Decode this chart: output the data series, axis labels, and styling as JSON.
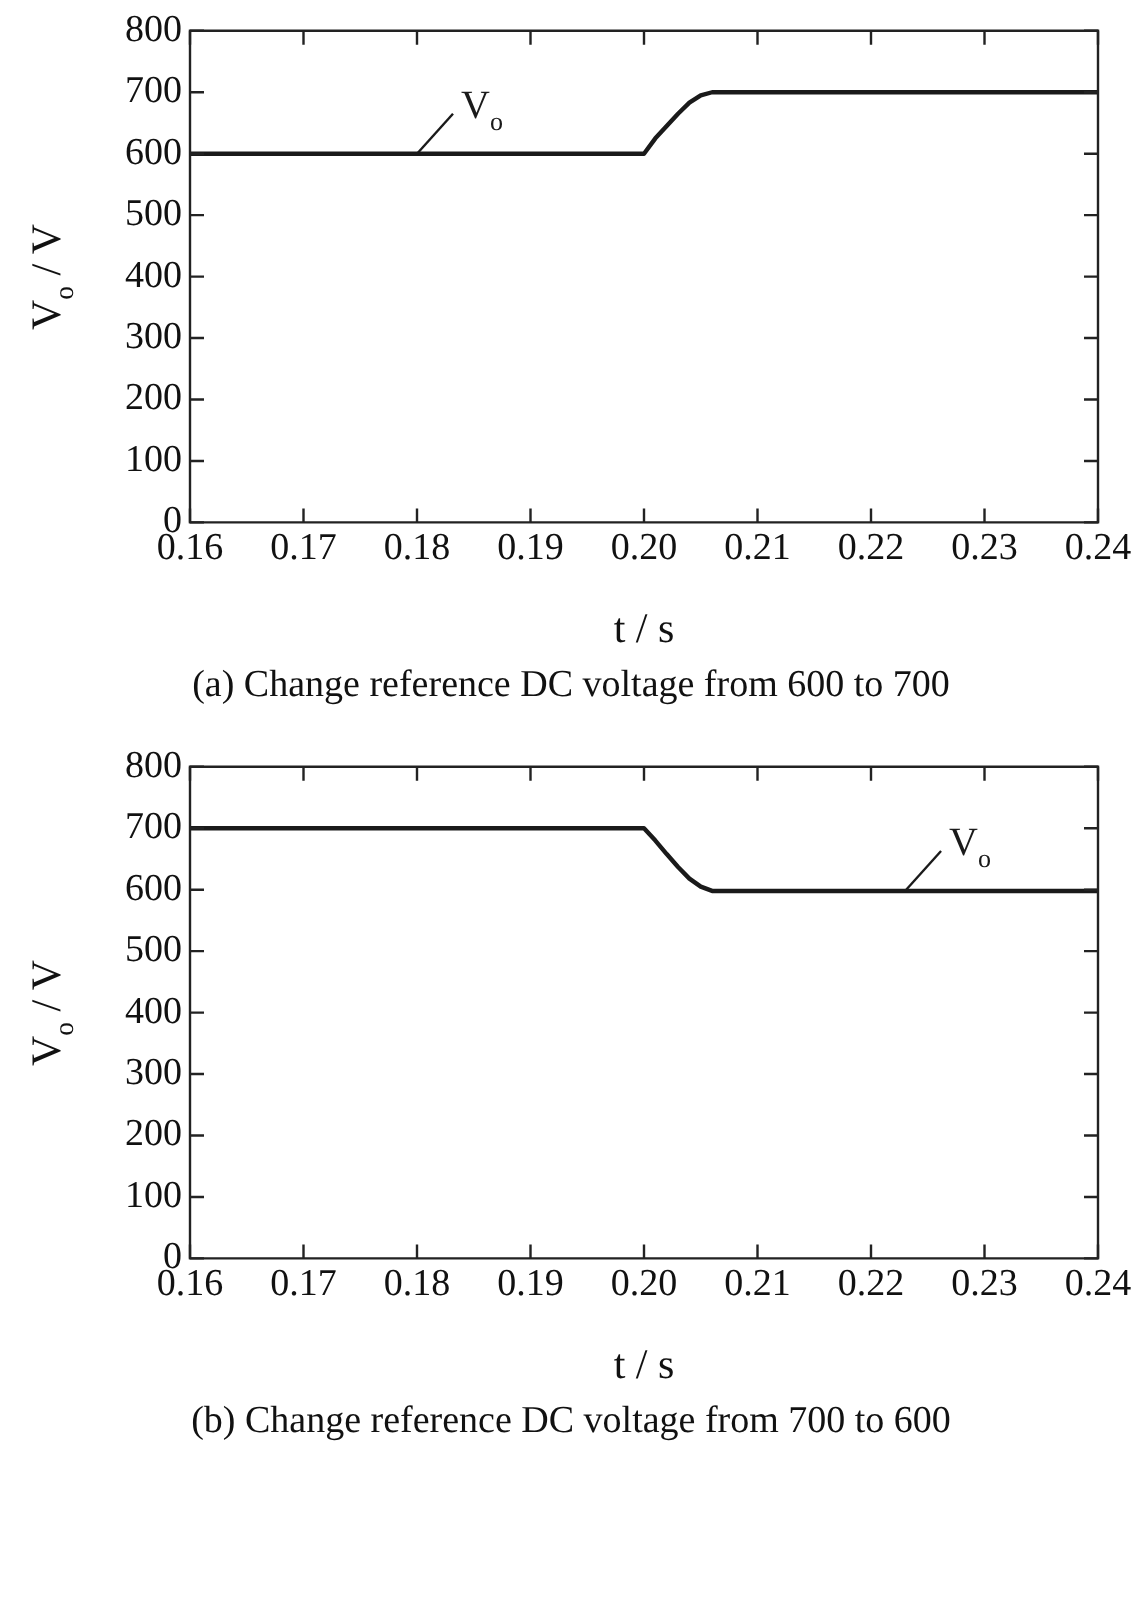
{
  "chart_data": [
    {
      "type": "line",
      "title": "(a)  Change reference DC voltage from 600 to 700",
      "xlabel": "t / s",
      "ylabel": "V$_{o}$ / V",
      "grid": false,
      "marker": "none",
      "line_style": "solid",
      "xlim": [
        0.16,
        0.24
      ],
      "xticks": [
        0.16,
        0.17,
        0.18,
        0.19,
        {
          "value": 0.2,
          "label": "0.20"
        },
        0.21,
        0.22,
        0.23,
        0.24
      ],
      "ylim": [
        0,
        800
      ],
      "yticks": [
        0,
        100,
        200,
        300,
        400,
        500,
        600,
        700,
        800
      ],
      "series": [
        {
          "name": "V$_{o}$",
          "color": "#1a1a1a",
          "x": [
            0.16,
            0.2,
            0.201,
            0.202,
            0.203,
            0.204,
            0.205,
            0.206,
            0.24
          ],
          "values": [
            600,
            600,
            625,
            645,
            665,
            683,
            695,
            700,
            700
          ]
        }
      ]
    },
    {
      "type": "line",
      "title": "(b)  Change reference DC voltage from 700 to 600",
      "xlabel": "t / s",
      "ylabel": "V$_{o}$ / V",
      "grid": false,
      "marker": "none",
      "line_style": "solid",
      "xlim": [
        0.16,
        0.24
      ],
      "xticks": [
        0.16,
        0.17,
        0.18,
        0.19,
        {
          "value": 0.2,
          "label": "0.20"
        },
        0.21,
        0.22,
        0.23,
        0.24
      ],
      "ylim": [
        0,
        800
      ],
      "yticks": [
        0,
        100,
        200,
        300,
        400,
        500,
        600,
        700,
        800
      ],
      "series": [
        {
          "name": "V$_{o}$",
          "color": "#1a1a1a",
          "x": [
            0.16,
            0.2,
            0.201,
            0.202,
            0.203,
            0.204,
            0.205,
            0.206,
            0.24
          ],
          "values": [
            700,
            700,
            680,
            658,
            637,
            618,
            605,
            598,
            598
          ]
        }
      ]
    }
  ]
}
